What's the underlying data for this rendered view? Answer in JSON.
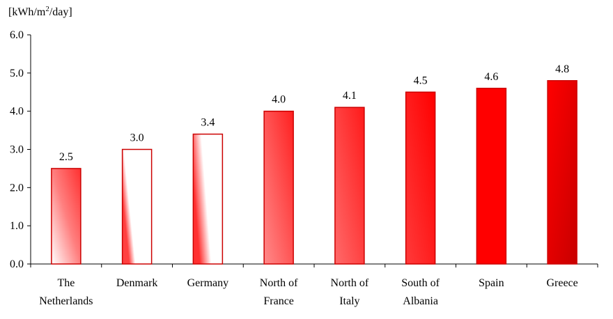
{
  "chart_data": {
    "type": "bar",
    "unit_label": "[kWh/m²/day]",
    "unit_parts": {
      "prefix": "[kWh/m",
      "sup": "2",
      "suffix": "/day]"
    },
    "categories": [
      [
        "The",
        "Netherlands"
      ],
      [
        "Denmark"
      ],
      [
        "Germany"
      ],
      [
        "North of",
        "France"
      ],
      [
        "North of",
        "Italy"
      ],
      [
        "South of",
        "Albania"
      ],
      [
        "Spain"
      ],
      [
        "Greece"
      ]
    ],
    "values": [
      2.5,
      3.0,
      3.4,
      4.0,
      4.1,
      4.5,
      4.6,
      4.8
    ],
    "value_labels": [
      "2.5",
      "3.0",
      "3.4",
      "4.0",
      "4.1",
      "4.5",
      "4.6",
      "4.8"
    ],
    "y_ticks": [
      "0.0",
      "1.0",
      "2.0",
      "3.0",
      "4.0",
      "5.0",
      "6.0"
    ],
    "ylim": [
      0,
      6
    ],
    "grid": false,
    "legend": "none",
    "colors": {
      "bar_edge": "#cc0000",
      "fill_light": "#ffffff",
      "fill_mid": "#ff6666",
      "fill_strong": "#ff0000",
      "fill_dark": "#cc0000"
    }
  }
}
